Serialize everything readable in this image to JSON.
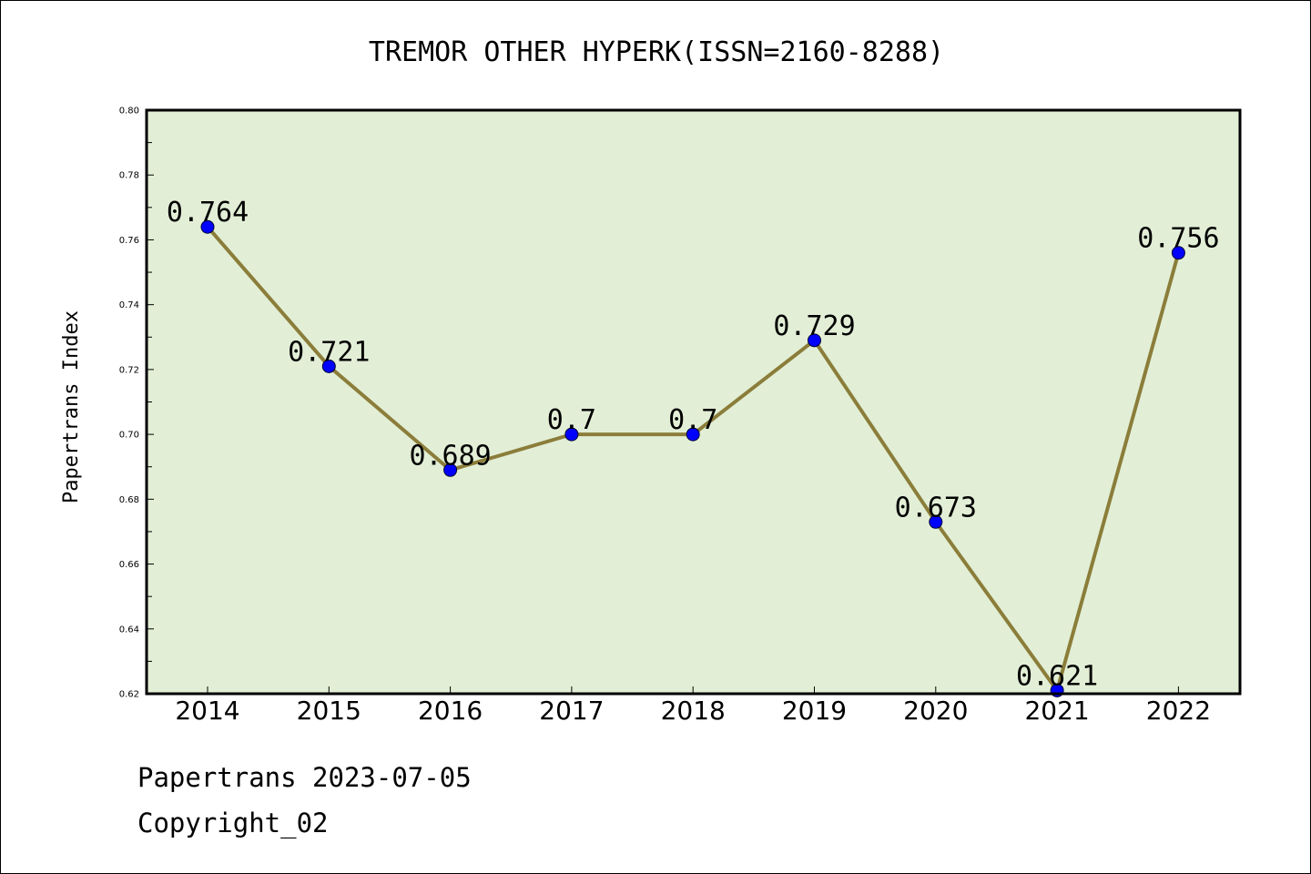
{
  "colors": {
    "plot_background": "#e2efd6",
    "line": "#8b7d3a",
    "marker": "#0000ff",
    "axis": "#000000"
  },
  "footer": {
    "date": "Papertrans 2023-07-05",
    "copyright": "Copyright_02"
  },
  "chart_data": {
    "type": "line",
    "title": "TREMOR OTHER HYPERK(ISSN=2160-8288)",
    "xlabel": "",
    "ylabel": "Papertrans Index",
    "categories": [
      "2014",
      "2015",
      "2016",
      "2017",
      "2018",
      "2019",
      "2020",
      "2021",
      "2022"
    ],
    "series": [
      {
        "values": [
          0.764,
          0.721,
          0.689,
          0.7,
          0.7,
          0.729,
          0.673,
          0.621,
          0.756
        ],
        "labels": [
          "0.764",
          "0.721",
          "0.689",
          "0.7",
          "0.7",
          "0.729",
          "0.673",
          "0.621",
          "0.756"
        ]
      }
    ],
    "ylim": [
      0.62,
      0.8
    ],
    "yticks": [
      "0.62",
      "0.64",
      "0.66",
      "0.68",
      "0.70",
      "0.72",
      "0.74",
      "0.76",
      "0.78",
      "0.80"
    ],
    "grid": false,
    "legend": "none"
  }
}
